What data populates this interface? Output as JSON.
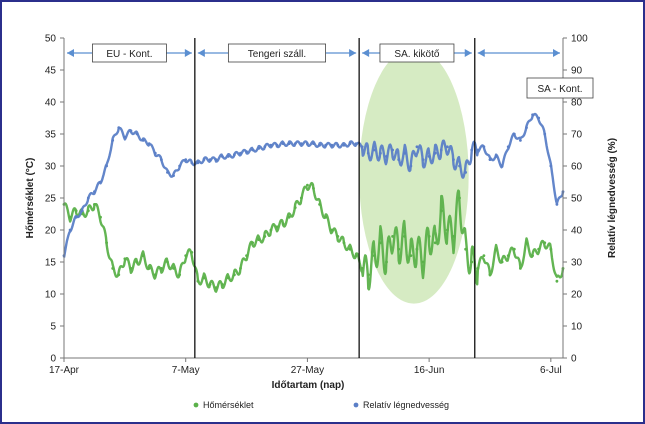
{
  "chart_data": {
    "type": "line",
    "title": "",
    "xlabel": "Időtartam (nap)",
    "ylabel_left": "Hőmérséklet (°C)",
    "ylabel_right": "Relatív légnedvesség (%)",
    "x_ticks": [
      "17-Apr",
      "7-May",
      "27-May",
      "16-Jun",
      "6-Jul"
    ],
    "y_left_ticks": [
      "0",
      "5",
      "10",
      "15",
      "20",
      "25",
      "30",
      "35",
      "40",
      "45",
      "50"
    ],
    "y_right_ticks": [
      "0",
      "10",
      "20",
      "30",
      "40",
      "50",
      "60",
      "70",
      "80",
      "90",
      "100"
    ],
    "ylim_left": [
      0,
      50
    ],
    "ylim_right": [
      0,
      100
    ],
    "xlim_days": [
      0,
      82
    ],
    "phase_boundaries_days": [
      21.5,
      48.5,
      67.5
    ],
    "phases": [
      {
        "label": "EU - Kont.",
        "start": 0,
        "end": 21.5
      },
      {
        "label": "Tengeri száll.",
        "start": 21.5,
        "end": 48.5
      },
      {
        "label": "SA. kikötő",
        "start": 48.5,
        "end": 67.5
      },
      {
        "label": "SA - Kont.",
        "start": 67.5,
        "end": 82
      }
    ],
    "highlight_ellipse": {
      "center_day": 57.5,
      "center_value_left": 28.5,
      "half_width_days": 9,
      "half_height_left": 20,
      "color": "#cfe8b8"
    },
    "legend_position": "bottom",
    "series": [
      {
        "name": "Hőmérséklet",
        "axis": "left",
        "color": "#5bb14a",
        "x": [
          0,
          1,
          2,
          3,
          4,
          5,
          6,
          7,
          8,
          9,
          10,
          11,
          12,
          13,
          14,
          15,
          16,
          17,
          18,
          19,
          20,
          21,
          22,
          23,
          24,
          25,
          26,
          27,
          28,
          29,
          30,
          31,
          32,
          33,
          34,
          35,
          36,
          37,
          38,
          39,
          40,
          41,
          42,
          43,
          44,
          45,
          46,
          47,
          48,
          49,
          50,
          51,
          52,
          53,
          54,
          55,
          56,
          57,
          58,
          59,
          60,
          61,
          62,
          63,
          64,
          65,
          66,
          67,
          68,
          69,
          70,
          71,
          72,
          73,
          74,
          75,
          76,
          77,
          78,
          79,
          80,
          81,
          82
        ],
        "values": [
          24,
          22,
          23,
          22.5,
          23,
          24,
          22,
          18,
          14,
          13,
          15.5,
          14,
          15,
          16,
          14,
          13,
          14,
          15,
          14,
          13,
          16,
          16.5,
          12,
          12.5,
          11.5,
          11,
          11.5,
          12.5,
          13,
          14,
          16,
          18,
          18.5,
          19,
          20,
          20.5,
          21,
          22,
          23.5,
          25,
          27,
          26.5,
          24,
          22,
          20,
          19,
          18,
          17,
          16,
          14,
          13,
          16,
          18,
          15,
          19,
          17,
          19,
          16,
          17,
          15,
          19,
          18,
          23,
          20,
          19,
          25,
          17,
          15,
          14,
          16,
          13,
          17,
          15,
          16,
          17,
          14,
          18,
          16,
          17,
          18,
          17,
          12,
          14
        ]
      },
      {
        "name": "Relatív légnedvesség",
        "axis": "right",
        "color": "#5b7fc7",
        "x": [
          0,
          1,
          2,
          3,
          4,
          5,
          6,
          7,
          8,
          9,
          10,
          11,
          12,
          13,
          14,
          15,
          16,
          17,
          18,
          19,
          20,
          21,
          22,
          23,
          24,
          25,
          26,
          27,
          28,
          29,
          30,
          31,
          32,
          33,
          34,
          35,
          36,
          37,
          38,
          39,
          40,
          41,
          42,
          43,
          44,
          45,
          46,
          47,
          48,
          49,
          50,
          51,
          52,
          53,
          54,
          55,
          56,
          57,
          58,
          59,
          60,
          61,
          62,
          63,
          64,
          65,
          66,
          67,
          68,
          69,
          70,
          71,
          72,
          73,
          74,
          75,
          76,
          77,
          78,
          79,
          80,
          81,
          82
        ],
        "values": [
          32,
          40,
          44,
          46,
          50,
          52,
          55,
          60,
          68,
          72,
          69,
          71,
          70,
          68,
          67,
          64,
          62,
          58,
          57,
          60,
          62,
          61,
          61,
          62,
          62,
          62,
          63,
          63,
          63.5,
          64,
          64.5,
          65,
          65.5,
          66,
          66.5,
          66.5,
          67,
          67,
          67,
          67,
          67,
          67,
          66.5,
          66.5,
          66.5,
          66.5,
          66.5,
          67,
          67,
          66,
          64,
          65,
          64,
          63,
          65,
          62,
          64,
          60,
          66,
          62,
          63,
          64,
          65,
          66,
          62,
          60,
          58,
          65,
          65,
          66,
          62,
          63,
          60,
          66,
          70,
          68,
          72,
          76,
          75,
          70,
          60,
          48,
          52
        ]
      }
    ]
  }
}
